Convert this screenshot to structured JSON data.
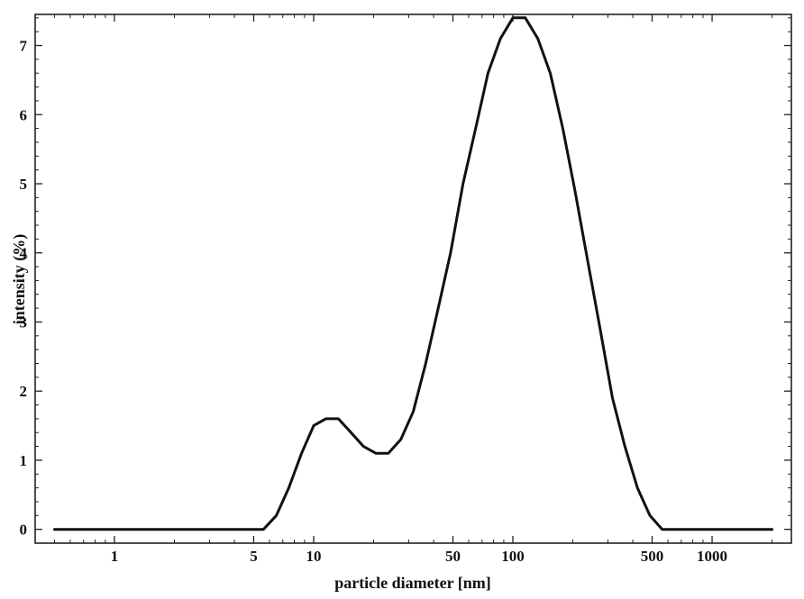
{
  "chart_data": {
    "type": "line",
    "title": "",
    "xlabel": "particle diameter [nm]",
    "ylabel": "intensity (%)",
    "x_scale": "log",
    "xlim": [
      0.4,
      2500
    ],
    "ylim": [
      -0.2,
      7.45
    ],
    "grid": false,
    "legend": "none",
    "x_ticks": [
      {
        "value": 1,
        "label": "1"
      },
      {
        "value": 5,
        "label": "5"
      },
      {
        "value": 10,
        "label": "10"
      },
      {
        "value": 50,
        "label": "50"
      },
      {
        "value": 100,
        "label": "100"
      },
      {
        "value": 500,
        "label": "500"
      },
      {
        "value": 1000,
        "label": "1000"
      }
    ],
    "y_ticks": [
      {
        "value": 0,
        "label": "0"
      },
      {
        "value": 1,
        "label": "1"
      },
      {
        "value": 2,
        "label": "2"
      },
      {
        "value": 3,
        "label": "3"
      },
      {
        "value": 4,
        "label": "4"
      },
      {
        "value": 5,
        "label": "5"
      },
      {
        "value": 6,
        "label": "6"
      },
      {
        "value": 7,
        "label": "7"
      }
    ],
    "series": [
      {
        "color": "#111111",
        "x": [
          0.5,
          1,
          2,
          4,
          5.6,
          6.5,
          7.5,
          8.7,
          10,
          11.5,
          13.3,
          15.4,
          17.8,
          20.5,
          23.7,
          27.4,
          31.6,
          36.5,
          42.2,
          48.7,
          56.2,
          65,
          75,
          86.6,
          100,
          115.5,
          133.4,
          154,
          178,
          205,
          237,
          274,
          316,
          365,
          422,
          487,
          562,
          650,
          750,
          1000,
          2000
        ],
        "y": [
          0,
          0,
          0,
          0,
          0,
          0.2,
          0.6,
          1.1,
          1.5,
          1.6,
          1.6,
          1.4,
          1.2,
          1.1,
          1.1,
          1.3,
          1.7,
          2.4,
          3.2,
          4.0,
          5.0,
          5.8,
          6.6,
          7.1,
          7.4,
          7.4,
          7.1,
          6.6,
          5.8,
          4.9,
          3.9,
          2.9,
          1.9,
          1.2,
          0.6,
          0.2,
          0,
          0,
          0,
          0,
          0
        ]
      }
    ]
  }
}
